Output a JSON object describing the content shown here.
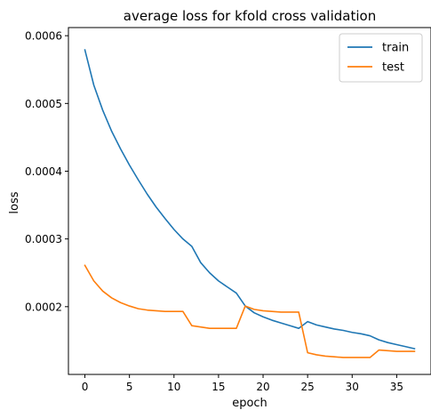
{
  "chart_data": {
    "type": "line",
    "title": "average loss for kfold cross validation",
    "xlabel": "epoch",
    "ylabel": "loss",
    "xlim": [
      -1.85,
      38.85
    ],
    "ylim": [
      0.0001,
      0.000612
    ],
    "xticks": [
      0,
      5,
      10,
      15,
      20,
      25,
      30,
      35
    ],
    "xtick_labels": [
      "0",
      "5",
      "10",
      "15",
      "20",
      "25",
      "30",
      "35"
    ],
    "yticks": [
      0.0002,
      0.0003,
      0.0004,
      0.0005,
      0.0006
    ],
    "ytick_labels": [
      "0.0002",
      "0.0003",
      "0.0004",
      "0.0005",
      "0.0006"
    ],
    "grid": false,
    "legend_position": "top-right",
    "x": [
      0,
      1,
      2,
      3,
      4,
      5,
      6,
      7,
      8,
      9,
      10,
      11,
      12,
      13,
      14,
      15,
      16,
      17,
      18,
      19,
      20,
      21,
      22,
      23,
      24,
      25,
      26,
      27,
      28,
      29,
      30,
      31,
      32,
      33,
      34,
      35,
      36,
      37
    ],
    "series": [
      {
        "name": "train",
        "color": "#1f77b4",
        "values": [
          0.000579,
          0.000527,
          0.00049,
          0.000459,
          0.000433,
          0.000409,
          0.000387,
          0.000366,
          0.000347,
          0.00033,
          0.000314,
          0.0003,
          0.000289,
          0.000265,
          0.00025,
          0.000238,
          0.000229,
          0.00022,
          0.000201,
          0.000191,
          0.000185,
          0.00018,
          0.000176,
          0.000172,
          0.000168,
          0.000178,
          0.000173,
          0.00017,
          0.000167,
          0.000165,
          0.000162,
          0.00016,
          0.000157,
          0.000151,
          0.000147,
          0.000144,
          0.000141,
          0.000138
        ]
      },
      {
        "name": "test",
        "color": "#ff7f0e",
        "values": [
          0.000261,
          0.000238,
          0.000223,
          0.000213,
          0.000206,
          0.000201,
          0.000197,
          0.000195,
          0.000194,
          0.000193,
          0.000193,
          0.000193,
          0.000172,
          0.00017,
          0.000168,
          0.000168,
          0.000168,
          0.000168,
          0.000201,
          0.000196,
          0.000194,
          0.000193,
          0.000192,
          0.000192,
          0.000192,
          0.000132,
          0.000129,
          0.000127,
          0.000126,
          0.000125,
          0.000125,
          0.000125,
          0.000125,
          0.000136,
          0.000135,
          0.000134,
          0.000134,
          0.000134
        ]
      }
    ]
  }
}
